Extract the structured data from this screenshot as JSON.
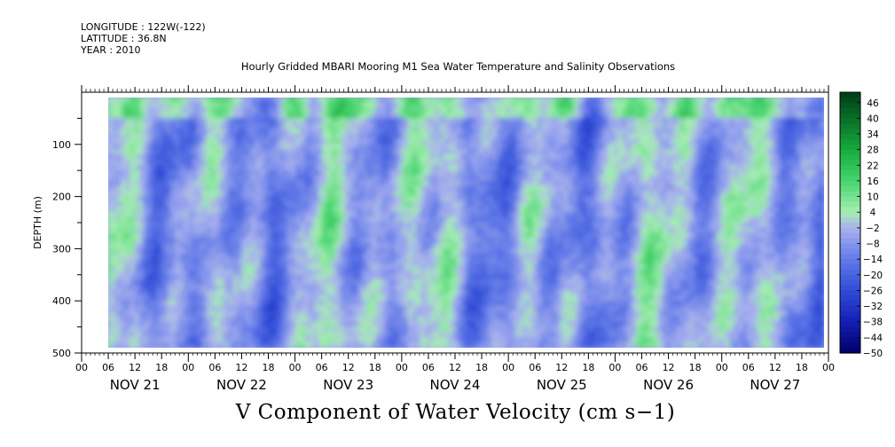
{
  "header": {
    "longitude": "LONGITUDE : 122W(-122)",
    "latitude": "LATITUDE : 36.8N",
    "year": "YEAR : 2010"
  },
  "chart_data": {
    "type": "heatmap",
    "title": "Hourly Gridded MBARI Mooring M1 Sea Water Temperature and Salinity Observations",
    "bottom_title": "V Component of Water Velocity (cm s−1)",
    "ylabel": "DEPTH (m)",
    "ylim": [
      500,
      0
    ],
    "y_ticks": [
      "100",
      "200",
      "300",
      "400",
      "500"
    ],
    "x_hour_ticks": [
      "00",
      "06",
      "12",
      "18",
      "00",
      "06",
      "12",
      "18",
      "00",
      "06",
      "12",
      "18",
      "00",
      "06",
      "12",
      "18",
      "00",
      "06",
      "12",
      "18",
      "00",
      "06",
      "12",
      "18",
      "00",
      "06",
      "12",
      "18",
      "00"
    ],
    "x_day_labels": [
      "NOV 21",
      "NOV 22",
      "NOV 23",
      "NOV 24",
      "NOV 25",
      "NOV 26",
      "NOV 27"
    ],
    "xlim_hours": [
      0,
      168
    ],
    "data_hours": [
      6,
      167
    ],
    "data_depth_m": [
      10,
      490
    ],
    "colorbar_levels": [
      "46",
      "40",
      "34",
      "28",
      "22",
      "16",
      "10",
      "4",
      "-2",
      "-8",
      "-14",
      "-20",
      "-26",
      "-32",
      "-38",
      "-44",
      "-50"
    ],
    "colorbar_range": [
      -50,
      50
    ],
    "colors": {
      "strong_negative": "#000066",
      "negative": "#2e4ad0",
      "weak_negative": "#a9b2ee",
      "weak_positive": "#a6eeb1",
      "positive": "#22c04e",
      "strong_positive": "#003f16"
    }
  }
}
